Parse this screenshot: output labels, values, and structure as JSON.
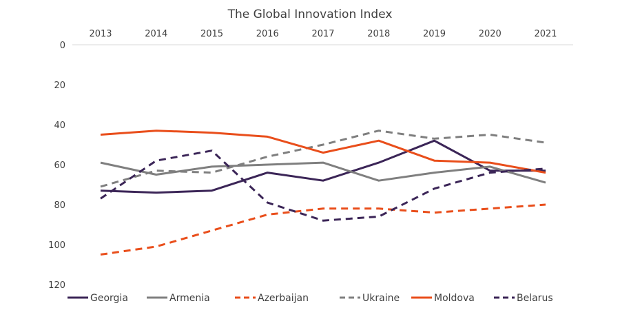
{
  "chart_data": {
    "type": "line",
    "title": "The Global Innovation Index",
    "x": [
      "2013",
      "2014",
      "2015",
      "2016",
      "2017",
      "2018",
      "2019",
      "2020",
      "2021"
    ],
    "ylim": [
      0,
      120
    ],
    "yticks": [
      "0",
      "20",
      "40",
      "60",
      "80",
      "100",
      "120"
    ],
    "y_inverted": true,
    "x_axis_position": "top",
    "grid": false,
    "legend_position": "bottom",
    "series": [
      {
        "name": "Georgia",
        "values": [
          73,
          74,
          73,
          64,
          68,
          59,
          48,
          63,
          63
        ],
        "color": "#3b2557",
        "dash": "solid"
      },
      {
        "name": "Armenia",
        "values": [
          59,
          65,
          61,
          60,
          59,
          68,
          64,
          61,
          69
        ],
        "color": "#7f7f7f",
        "dash": "solid"
      },
      {
        "name": "Azerbaijan",
        "values": [
          105,
          101,
          93,
          85,
          82,
          82,
          84,
          82,
          80
        ],
        "color": "#e94e1b",
        "dash": "dashed"
      },
      {
        "name": "Ukraine",
        "values": [
          71,
          63,
          64,
          56,
          50,
          43,
          47,
          45,
          49
        ],
        "color": "#7f7f7f",
        "dash": "dashed"
      },
      {
        "name": "Moldova",
        "values": [
          45,
          43,
          44,
          46,
          54,
          48,
          58,
          59,
          64
        ],
        "color": "#e94e1b",
        "dash": "solid"
      },
      {
        "name": "Belarus",
        "values": [
          77,
          58,
          53,
          79,
          88,
          86,
          72,
          64,
          62
        ],
        "color": "#3b2557",
        "dash": "dashed"
      }
    ]
  }
}
